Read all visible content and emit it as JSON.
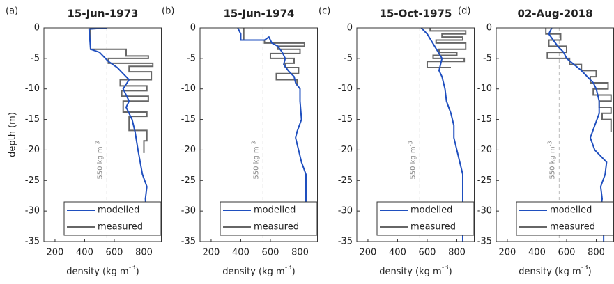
{
  "chart_data": [
    {
      "type": "line",
      "panel": "(a)",
      "title": "15-Jun-1973",
      "ylabel": "depth (m)",
      "xlabel": "density (kg m",
      "xlabel_sup": "-3",
      "xlabel_end": ")",
      "xlim": [
        125,
        920
      ],
      "xticks": [
        200,
        400,
        600,
        800
      ],
      "ylim": [
        -35,
        0
      ],
      "yticks": [
        -35,
        -30,
        -25,
        -20,
        -15,
        -10,
        -5,
        0
      ],
      "reference_line": {
        "x": 550,
        "label": "550 kg m",
        "label_sup": "-3"
      },
      "legend": true,
      "series": [
        {
          "name": "modelled",
          "color": "#1f4fbf",
          "x": [
            550,
            430,
            440,
            500,
            560,
            620,
            680,
            700,
            660,
            700,
            680,
            720,
            740,
            760,
            790,
            820,
            810,
            820
          ],
          "values": [
            0,
            -0.2,
            -3.5,
            -4,
            -5.5,
            -6.5,
            -8,
            -8.5,
            -10,
            -12,
            -13,
            -15,
            -17,
            -20,
            -24,
            -26,
            -28,
            -33.5
          ]
        },
        {
          "name": "measured",
          "color": "#666666",
          "x": [
            440,
            440,
            680,
            680,
            830,
            830,
            560,
            560,
            860,
            860,
            700,
            700,
            850,
            850,
            640,
            640,
            820,
            820,
            650,
            650,
            830,
            830,
            660,
            660,
            820,
            820,
            700,
            700,
            820,
            820,
            800,
            800
          ],
          "values": [
            0,
            -3.5,
            -3.5,
            -4.6,
            -4.6,
            -5,
            -5,
            -5.8,
            -5.8,
            -6.3,
            -6.3,
            -7.2,
            -7.2,
            -8.5,
            -8.5,
            -9.5,
            -9.5,
            -10.3,
            -10.3,
            -11.2,
            -11.2,
            -12,
            -12,
            -13.8,
            -13.8,
            -14.5,
            -14.5,
            -16.8,
            -16.8,
            -18.5,
            -18.5,
            -20.5
          ]
        }
      ]
    },
    {
      "type": "line",
      "panel": "(b)",
      "title": "15-Jun-1974",
      "xlabel": "density (kg m",
      "xlabel_sup": "-3",
      "xlabel_end": ")",
      "xlim": [
        125,
        920
      ],
      "xticks": [
        200,
        400,
        600,
        800
      ],
      "ylim": [
        -35,
        0
      ],
      "yticks": [
        -35,
        -30,
        -25,
        -20,
        -15,
        -10,
        -5,
        0
      ],
      "reference_line": {
        "x": 550,
        "label": "550 kg m",
        "label_sup": "-3"
      },
      "legend": true,
      "series": [
        {
          "name": "modelled",
          "color": "#1f4fbf",
          "x": [
            380,
            400,
            400,
            560,
            590,
            610,
            650,
            680,
            700,
            690,
            720,
            760,
            770,
            800,
            800,
            810,
            780,
            770,
            790,
            810,
            840,
            840
          ],
          "values": [
            0,
            -1,
            -2,
            -2,
            -1.5,
            -2.5,
            -3,
            -4,
            -5,
            -6,
            -7,
            -8,
            -9,
            -10,
            -12,
            -15,
            -17,
            -18,
            -20,
            -22,
            -24,
            -34
          ]
        },
        {
          "name": "measured",
          "color": "#666666",
          "x": [
            420,
            420,
            560,
            560,
            830,
            830,
            650,
            650,
            800,
            800,
            600,
            600,
            760,
            760,
            700,
            700,
            790,
            790,
            640,
            640,
            780,
            780
          ],
          "values": [
            0,
            -2,
            -2,
            -2.5,
            -2.5,
            -3,
            -3,
            -3.5,
            -3.5,
            -4.2,
            -4.2,
            -5,
            -5,
            -5.8,
            -5.8,
            -6.5,
            -6.5,
            -7.5,
            -7.5,
            -8.5,
            -8.5,
            -9.5
          ]
        }
      ]
    },
    {
      "type": "line",
      "panel": "(c)",
      "title": "15-Oct-1975",
      "xlabel": "density (kg m",
      "xlabel_sup": "-3",
      "xlabel_end": ")",
      "xlim": [
        125,
        920
      ],
      "xticks": [
        200,
        400,
        600,
        800
      ],
      "ylim": [
        -35,
        0
      ],
      "yticks": [
        -35,
        -30,
        -25,
        -20,
        -15,
        -10,
        -5,
        0
      ],
      "reference_line": {
        "x": 550,
        "label": "550 kg m",
        "label_sup": "-3"
      },
      "legend": true,
      "series": [
        {
          "name": "modelled",
          "color": "#1f4fbf",
          "x": [
            560,
            600,
            650,
            700,
            680,
            700,
            720,
            730,
            760,
            780,
            780,
            800,
            820,
            840,
            840
          ],
          "values": [
            0,
            -1,
            -3,
            -5,
            -7,
            -8,
            -10,
            -12,
            -14,
            -16,
            -18,
            -20,
            -22,
            -24,
            -35
          ]
        },
        {
          "name": "measured",
          "color": "#666666",
          "x": [
            620,
            620,
            860,
            860,
            700,
            700,
            840,
            840,
            660,
            660,
            860,
            860,
            680,
            680,
            800,
            800,
            640,
            640,
            850,
            850,
            600,
            600,
            760
          ],
          "values": [
            0,
            -0.5,
            -0.5,
            -1,
            -1,
            -1.5,
            -1.5,
            -2,
            -2,
            -2.5,
            -2.5,
            -3.5,
            -3.5,
            -4,
            -4,
            -4.5,
            -4.5,
            -5,
            -5,
            -5.5,
            -5.5,
            -6.5,
            -6.5
          ]
        }
      ]
    },
    {
      "type": "line",
      "panel": "(d)",
      "title": "02-Aug-2018",
      "xlabel": "density (kg m",
      "xlabel_sup": "-3",
      "xlabel_end": ")",
      "xlim": [
        125,
        920
      ],
      "xticks": [
        200,
        400,
        600,
        800
      ],
      "ylim": [
        -35,
        0
      ],
      "yticks": [
        -35,
        -30,
        -25,
        -20,
        -15,
        -10,
        -5,
        0
      ],
      "reference_line": {
        "x": 550,
        "label": "550 kg m",
        "label_sup": "-3"
      },
      "legend": true,
      "series": [
        {
          "name": "modelled",
          "color": "#1f4fbf",
          "x": [
            500,
            480,
            540,
            580,
            600,
            700,
            740,
            780,
            800,
            820,
            820,
            790,
            760,
            790,
            830,
            870,
            860,
            830,
            840,
            830,
            850,
            850
          ],
          "values": [
            0,
            -1,
            -3,
            -4,
            -5,
            -7,
            -8,
            -9,
            -10,
            -12,
            -14,
            -16,
            -18,
            -20,
            -21,
            -22,
            -24,
            -26,
            -28,
            -30,
            -32,
            -35
          ]
        },
        {
          "name": "measured",
          "color": "#666666",
          "x": [
            460,
            460,
            560,
            560,
            480,
            480,
            600,
            600,
            470,
            470,
            620,
            620,
            700,
            700,
            800,
            800,
            760,
            760,
            880,
            880,
            780,
            780,
            900,
            900,
            820,
            820,
            900,
            900,
            840,
            840,
            900,
            900
          ],
          "values": [
            0,
            -1,
            -1,
            -2,
            -2,
            -3,
            -3,
            -4,
            -4,
            -5,
            -5,
            -6,
            -6,
            -7,
            -7,
            -8,
            -8,
            -9,
            -9,
            -10,
            -10,
            -11,
            -11,
            -12,
            -12,
            -13,
            -13,
            -14,
            -14,
            -15,
            -15,
            -17
          ]
        }
      ]
    }
  ]
}
